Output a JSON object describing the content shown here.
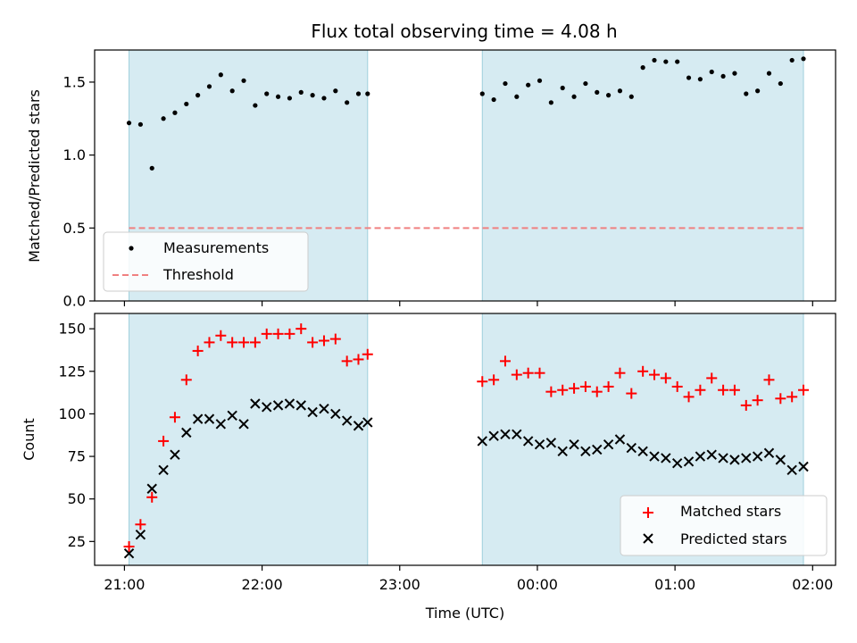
{
  "chart_data": [
    {
      "type": "scatter",
      "title": "Flux total observing time = 4.08 h",
      "ylabel": "Matched/Predicted stars",
      "xlabel": "",
      "ylim": [
        0,
        1.72
      ],
      "yticks": [
        0.0,
        0.5,
        1.0,
        1.5
      ],
      "ytick_labels": [
        "0.0",
        "0.5",
        "1.0",
        "1.5"
      ],
      "legend_placement": "lower-left",
      "shaded_intervals": [
        [
          "21:02",
          "22:46"
        ],
        [
          "23:36",
          "01:56"
        ]
      ],
      "series": [
        {
          "name": "Measurements",
          "marker": "dot",
          "color": "#000000",
          "x": [
            "21:02",
            "21:07",
            "21:12",
            "21:17",
            "21:22",
            "21:27",
            "21:32",
            "21:37",
            "21:42",
            "21:47",
            "21:52",
            "21:57",
            "22:02",
            "22:07",
            "22:12",
            "22:17",
            "22:22",
            "22:27",
            "22:32",
            "22:37",
            "22:42",
            "22:46",
            "23:36",
            "23:41",
            "23:46",
            "23:51",
            "23:56",
            "00:01",
            "00:06",
            "00:11",
            "00:16",
            "00:21",
            "00:26",
            "00:31",
            "00:36",
            "00:41",
            "00:46",
            "00:51",
            "00:56",
            "01:01",
            "01:06",
            "01:11",
            "01:16",
            "01:21",
            "01:26",
            "01:31",
            "01:36",
            "01:41",
            "01:46",
            "01:51",
            "01:56"
          ],
          "values": [
            1.22,
            1.21,
            0.91,
            1.25,
            1.29,
            1.35,
            1.41,
            1.47,
            1.55,
            1.44,
            1.51,
            1.34,
            1.42,
            1.4,
            1.39,
            1.43,
            1.41,
            1.39,
            1.44,
            1.36,
            1.42,
            1.42,
            1.42,
            1.38,
            1.49,
            1.4,
            1.48,
            1.51,
            1.36,
            1.46,
            1.4,
            1.49,
            1.43,
            1.41,
            1.44,
            1.4,
            1.6,
            1.65,
            1.64,
            1.64,
            1.53,
            1.52,
            1.57,
            1.54,
            1.56,
            1.42,
            1.44,
            1.56,
            1.49,
            1.65,
            1.66
          ]
        },
        {
          "name": "Threshold",
          "style": "dashed",
          "color": "#f08080",
          "x": [
            "21:02",
            "01:56"
          ],
          "values": [
            0.5,
            0.5
          ]
        }
      ]
    },
    {
      "type": "scatter",
      "title": "",
      "ylabel": "Count",
      "xlabel": "Time (UTC)",
      "ylim": [
        11,
        159
      ],
      "yticks": [
        25,
        50,
        75,
        100,
        125,
        150
      ],
      "ytick_labels": [
        "25",
        "50",
        "75",
        "100",
        "125",
        "150"
      ],
      "xlim": [
        "20:47",
        "02:10"
      ],
      "xticks": [
        "21:00",
        "22:00",
        "23:00",
        "00:00",
        "01:00",
        "02:00"
      ],
      "xtick_labels": [
        "21:00",
        "22:00",
        "23:00",
        "00:00",
        "01:00",
        "02:00"
      ],
      "legend_placement": "lower-right",
      "shaded_intervals": [
        [
          "21:02",
          "22:46"
        ],
        [
          "23:36",
          "01:56"
        ]
      ],
      "series": [
        {
          "name": "Matched stars",
          "marker": "plus",
          "color": "#ff0000",
          "x": [
            "21:02",
            "21:07",
            "21:12",
            "21:17",
            "21:22",
            "21:27",
            "21:32",
            "21:37",
            "21:42",
            "21:47",
            "21:52",
            "21:57",
            "22:02",
            "22:07",
            "22:12",
            "22:17",
            "22:22",
            "22:27",
            "22:32",
            "22:37",
            "22:42",
            "22:46",
            "23:36",
            "23:41",
            "23:46",
            "23:51",
            "23:56",
            "00:01",
            "00:06",
            "00:11",
            "00:16",
            "00:21",
            "00:26",
            "00:31",
            "00:36",
            "00:41",
            "00:46",
            "00:51",
            "00:56",
            "01:01",
            "01:06",
            "01:11",
            "01:16",
            "01:21",
            "01:26",
            "01:31",
            "01:36",
            "01:41",
            "01:46",
            "01:51",
            "01:56"
          ],
          "values": [
            22,
            35,
            51,
            84,
            98,
            120,
            137,
            142,
            146,
            142,
            142,
            142,
            147,
            147,
            147,
            150,
            142,
            143,
            144,
            131,
            132,
            135,
            119,
            120,
            131,
            123,
            124,
            124,
            113,
            114,
            115,
            116,
            113,
            116,
            124,
            112,
            125,
            123,
            121,
            116,
            110,
            114,
            121,
            114,
            114,
            105,
            108,
            120,
            109,
            110,
            114
          ]
        },
        {
          "name": "Predicted stars",
          "marker": "x",
          "color": "#000000",
          "x": [
            "21:02",
            "21:07",
            "21:12",
            "21:17",
            "21:22",
            "21:27",
            "21:32",
            "21:37",
            "21:42",
            "21:47",
            "21:52",
            "21:57",
            "22:02",
            "22:07",
            "22:12",
            "22:17",
            "22:22",
            "22:27",
            "22:32",
            "22:37",
            "22:42",
            "22:46",
            "23:36",
            "23:41",
            "23:46",
            "23:51",
            "23:56",
            "00:01",
            "00:06",
            "00:11",
            "00:16",
            "00:21",
            "00:26",
            "00:31",
            "00:36",
            "00:41",
            "00:46",
            "00:51",
            "00:56",
            "01:01",
            "01:06",
            "01:11",
            "01:16",
            "01:21",
            "01:26",
            "01:31",
            "01:36",
            "01:41",
            "01:46",
            "01:51",
            "01:56"
          ],
          "values": [
            18,
            29,
            56,
            67,
            76,
            89,
            97,
            97,
            94,
            99,
            94,
            106,
            104,
            105,
            106,
            105,
            101,
            103,
            100,
            96,
            93,
            95,
            84,
            87,
            88,
            88,
            84,
            82,
            83,
            78,
            82,
            78,
            79,
            82,
            85,
            80,
            78,
            75,
            74,
            71,
            72,
            75,
            76,
            74,
            73,
            74,
            75,
            77,
            73,
            67,
            69
          ]
        }
      ]
    }
  ],
  "legend": {
    "top": [
      "Measurements",
      "Threshold"
    ],
    "bottom": [
      "Matched stars",
      "Predicted stars"
    ]
  }
}
